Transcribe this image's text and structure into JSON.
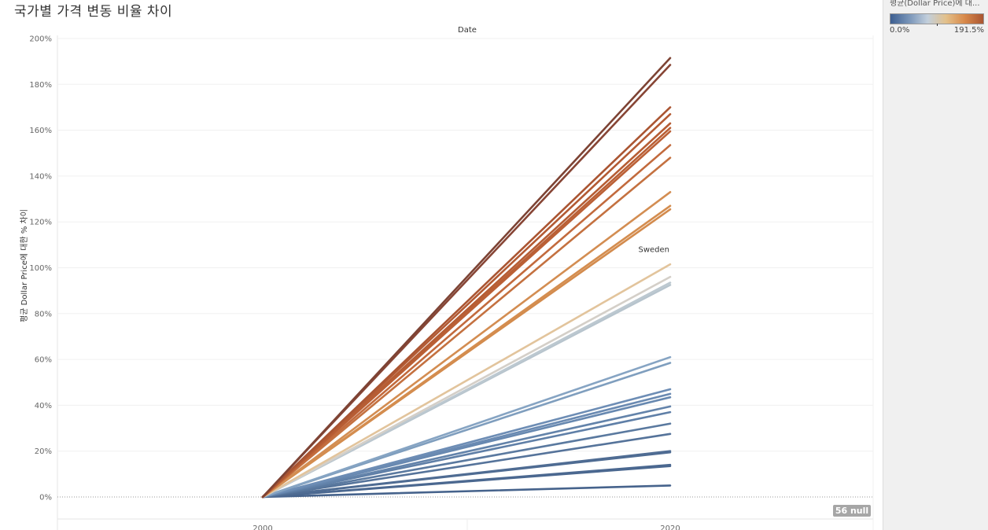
{
  "title": "국가별 가격 변동 비율 차이",
  "chart_data": {
    "type": "line",
    "column_header": "Date",
    "ylabel": "평균 Dollar Price에 대한 % 차이",
    "xlabel": "",
    "x": [
      "2000",
      "2020"
    ],
    "ylim": [
      -10,
      200
    ],
    "y_ticks": [
      "0%",
      "20%",
      "40%",
      "60%",
      "80%",
      "100%",
      "120%",
      "140%",
      "160%",
      "180%",
      "200%"
    ],
    "y_tick_values": [
      0,
      20,
      40,
      60,
      80,
      100,
      120,
      140,
      160,
      180,
      200
    ],
    "grid": true,
    "series": [
      {
        "values": [
          0,
          191.5
        ],
        "color": "#7d4334"
      },
      {
        "values": [
          0,
          188.5
        ],
        "color": "#874535"
      },
      {
        "values": [
          0,
          170
        ],
        "color": "#aa5532"
      },
      {
        "values": [
          0,
          167
        ],
        "color": "#b35a33"
      },
      {
        "values": [
          0,
          163
        ],
        "color": "#b65d34"
      },
      {
        "values": [
          0,
          161
        ],
        "color": "#b95f35"
      },
      {
        "values": [
          0,
          159.5
        ],
        "color": "#bb6036"
      },
      {
        "values": [
          0,
          153.5
        ],
        "color": "#c26a3d"
      },
      {
        "values": [
          0,
          148
        ],
        "color": "#c47140"
      },
      {
        "values": [
          0,
          133
        ],
        "color": "#d38d52"
      },
      {
        "values": [
          0,
          127
        ],
        "color": "#d48d4f"
      },
      {
        "values": [
          0,
          125.5
        ],
        "color": "#d38b4d"
      },
      {
        "values": [
          0,
          101.5
        ],
        "color": "#e2c49c"
      },
      {
        "values": [
          0,
          96
        ],
        "color": "#d4cfc8"
      },
      {
        "values": [
          0,
          93.5
        ],
        "color": "#bcc8d0"
      },
      {
        "values": [
          0,
          92.5
        ],
        "color": "#b7c4cd"
      },
      {
        "values": [
          0,
          61
        ],
        "color": "#86a4c3"
      },
      {
        "values": [
          0,
          58.5
        ],
        "color": "#7f9ebe"
      },
      {
        "values": [
          0,
          47
        ],
        "color": "#6d8db5"
      },
      {
        "values": [
          0,
          45
        ],
        "color": "#6a8ab2"
      },
      {
        "values": [
          0,
          43.5
        ],
        "color": "#6788b0"
      },
      {
        "values": [
          0,
          39.5
        ],
        "color": "#6383aa"
      },
      {
        "values": [
          0,
          37
        ],
        "color": "#5f7fa7"
      },
      {
        "values": [
          0,
          32
        ],
        "color": "#5a799f"
      },
      {
        "values": [
          0,
          27.5
        ],
        "color": "#55739a"
      },
      {
        "values": [
          0,
          20
        ],
        "color": "#4f6c93"
      },
      {
        "values": [
          0,
          19.5
        ],
        "color": "#4e6b92"
      },
      {
        "values": [
          0,
          14
        ],
        "color": "#4b6890"
      },
      {
        "values": [
          0,
          13.5
        ],
        "color": "#4a678f"
      },
      {
        "values": [
          0,
          5
        ],
        "color": "#46638c"
      }
    ],
    "end_labels": [
      {
        "text": "Sweden",
        "y": 104.5,
        "anchor": "end"
      }
    ]
  },
  "legend": {
    "title": "평균(Dollar Price)에 대...",
    "min_label": "0.0%",
    "max_label": "191.5%",
    "colors": [
      "#3d5f91",
      "#7894b8",
      "#c2cfdc",
      "#e3c08a",
      "#d8894a",
      "#a95531"
    ]
  },
  "null_badge": "56 null"
}
